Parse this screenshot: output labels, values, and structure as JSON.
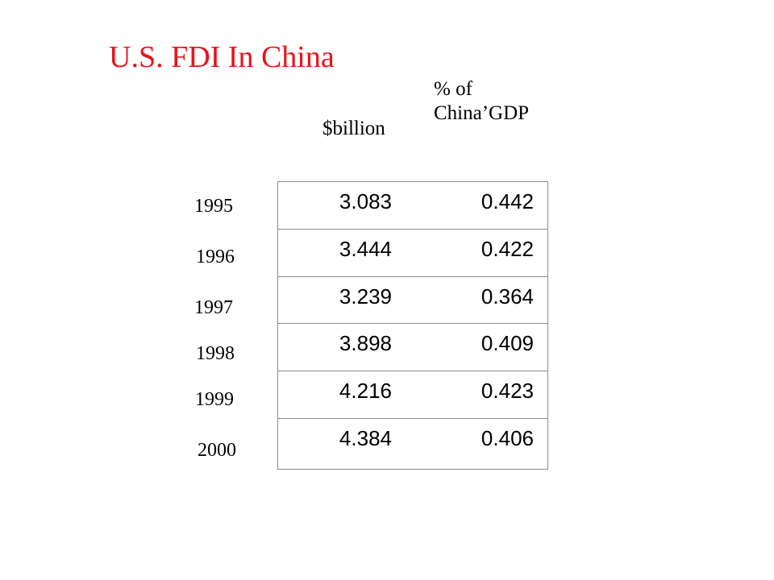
{
  "title": "U.S. FDI In China",
  "title_color": "#e8141b",
  "chart_data": {
    "type": "table",
    "title": "U.S. FDI In China",
    "columns": [
      "$billion",
      "% of China’GDP"
    ],
    "column_header_lines": [
      [
        "$billion"
      ],
      [
        "% of",
        "China’GDP"
      ]
    ],
    "rows": [
      {
        "year": "1995",
        "billion": "3.083",
        "pct_gdp": "0.442"
      },
      {
        "year": "1996",
        "billion": "3.444",
        "pct_gdp": "0.422"
      },
      {
        "year": "1997",
        "billion": "3.239",
        "pct_gdp": "0.364"
      },
      {
        "year": "1998",
        "billion": "3.898",
        "pct_gdp": "0.409"
      },
      {
        "year": "1999",
        "billion": "4.216",
        "pct_gdp": "0.423"
      },
      {
        "year": "2000",
        "billion": "4.384",
        "pct_gdp": "0.406"
      }
    ]
  }
}
